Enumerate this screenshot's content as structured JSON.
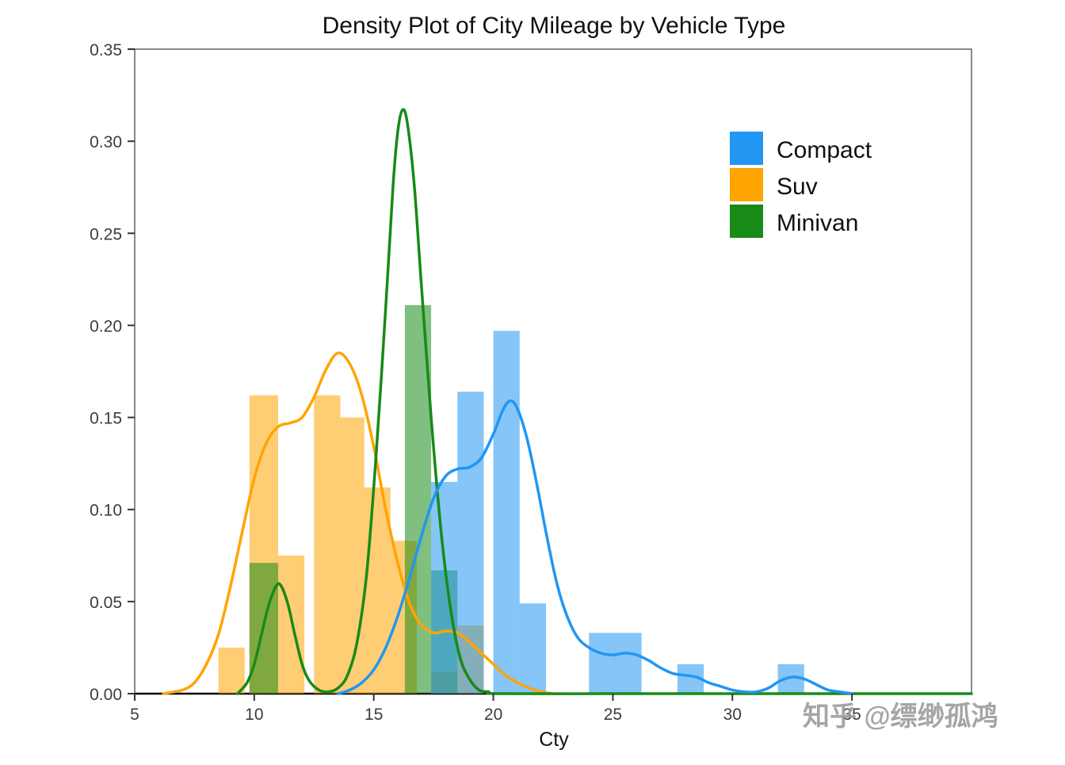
{
  "chart_data": {
    "type": "line",
    "subtype": "density-curves-with-histogram",
    "title": "Density Plot of City Mileage by Vehicle Type",
    "xlabel": "Cty",
    "ylabel": "",
    "xlim": [
      5,
      40
    ],
    "ylim": [
      0,
      0.35
    ],
    "grid": false,
    "x_ticks": [
      5,
      10,
      15,
      20,
      25,
      30,
      35
    ],
    "y_ticks": [
      "0.00",
      "0.05",
      "0.10",
      "0.15",
      "0.20",
      "0.25",
      "0.30",
      "0.35"
    ],
    "legend": {
      "position": "top-right",
      "items": [
        {
          "label": "Compact",
          "color": "#2196F3"
        },
        {
          "label": "Suv",
          "color": "#FFA400"
        },
        {
          "label": "Minivan",
          "color": "#188A18"
        }
      ]
    },
    "series": [
      {
        "name": "Suv",
        "color": "#FFA400",
        "bar_opacity": 0.55,
        "bars": [
          [
            8.5,
            9.6,
            0.025
          ],
          [
            9.8,
            11.0,
            0.162
          ],
          [
            11.0,
            12.1,
            0.075
          ],
          [
            12.5,
            13.6,
            0.162
          ],
          [
            13.6,
            14.6,
            0.15
          ],
          [
            14.6,
            15.7,
            0.112
          ],
          [
            15.7,
            16.8,
            0.083
          ],
          [
            17.4,
            18.5,
            0.012
          ],
          [
            18.5,
            19.6,
            0.037
          ]
        ],
        "density": [
          [
            6.2,
            0
          ],
          [
            7,
            0.002
          ],
          [
            7.5,
            0.006
          ],
          [
            8,
            0.016
          ],
          [
            8.5,
            0.032
          ],
          [
            9,
            0.058
          ],
          [
            9.5,
            0.088
          ],
          [
            10,
            0.117
          ],
          [
            10.5,
            0.136
          ],
          [
            11,
            0.145
          ],
          [
            11.5,
            0.147
          ],
          [
            12,
            0.15
          ],
          [
            12.5,
            0.161
          ],
          [
            13,
            0.176
          ],
          [
            13.5,
            0.185
          ],
          [
            14,
            0.179
          ],
          [
            14.5,
            0.162
          ],
          [
            15,
            0.134
          ],
          [
            15.5,
            0.1
          ],
          [
            16,
            0.071
          ],
          [
            16.5,
            0.049
          ],
          [
            17,
            0.037
          ],
          [
            17.5,
            0.033
          ],
          [
            18,
            0.034
          ],
          [
            18.5,
            0.033
          ],
          [
            19,
            0.028
          ],
          [
            19.5,
            0.022
          ],
          [
            20,
            0.016
          ],
          [
            20.5,
            0.01
          ],
          [
            21,
            0.006
          ],
          [
            21.5,
            0.003
          ],
          [
            22,
            0.001
          ],
          [
            22.5,
            0
          ]
        ]
      },
      {
        "name": "Minivan",
        "color": "#188A18",
        "bar_opacity": 0.55,
        "bars": [
          [
            9.8,
            11.0,
            0.071
          ],
          [
            16.3,
            17.4,
            0.211
          ],
          [
            17.4,
            18.5,
            0.067
          ]
        ],
        "density": [
          [
            9.3,
            0
          ],
          [
            9.7,
            0.006
          ],
          [
            10,
            0.016
          ],
          [
            10.3,
            0.032
          ],
          [
            10.6,
            0.048
          ],
          [
            10.9,
            0.058
          ],
          [
            11.1,
            0.059
          ],
          [
            11.4,
            0.049
          ],
          [
            11.7,
            0.032
          ],
          [
            12,
            0.016
          ],
          [
            12.3,
            0.007
          ],
          [
            12.7,
            0.002
          ],
          [
            13.1,
            0.001
          ],
          [
            13.5,
            0.003
          ],
          [
            13.9,
            0.01
          ],
          [
            14.3,
            0.028
          ],
          [
            14.7,
            0.065
          ],
          [
            15.1,
            0.13
          ],
          [
            15.5,
            0.21
          ],
          [
            15.8,
            0.275
          ],
          [
            16.0,
            0.305
          ],
          [
            16.2,
            0.317
          ],
          [
            16.4,
            0.31
          ],
          [
            16.7,
            0.275
          ],
          [
            17.0,
            0.22
          ],
          [
            17.4,
            0.15
          ],
          [
            17.8,
            0.09
          ],
          [
            18.2,
            0.047
          ],
          [
            18.6,
            0.02
          ],
          [
            19.0,
            0.008
          ],
          [
            19.4,
            0.002
          ],
          [
            19.8,
            0.001
          ],
          [
            20.2,
            0
          ],
          [
            25,
            0
          ],
          [
            30,
            0
          ],
          [
            35,
            0
          ],
          [
            40,
            0
          ]
        ]
      },
      {
        "name": "Compact",
        "color": "#2196F3",
        "bar_opacity": 0.55,
        "bars": [
          [
            17.4,
            18.5,
            0.115
          ],
          [
            18.5,
            19.6,
            0.164
          ],
          [
            20.0,
            21.1,
            0.197
          ],
          [
            21.1,
            22.2,
            0.049
          ],
          [
            24.0,
            25.1,
            0.033
          ],
          [
            25.1,
            26.2,
            0.033
          ],
          [
            27.7,
            28.8,
            0.016
          ],
          [
            31.9,
            33.0,
            0.016
          ]
        ],
        "density": [
          [
            13.5,
            0
          ],
          [
            14,
            0.002
          ],
          [
            14.5,
            0.006
          ],
          [
            15,
            0.013
          ],
          [
            15.5,
            0.025
          ],
          [
            16,
            0.042
          ],
          [
            16.5,
            0.063
          ],
          [
            17,
            0.086
          ],
          [
            17.5,
            0.106
          ],
          [
            18,
            0.118
          ],
          [
            18.5,
            0.122
          ],
          [
            19,
            0.123
          ],
          [
            19.5,
            0.128
          ],
          [
            20,
            0.141
          ],
          [
            20.4,
            0.154
          ],
          [
            20.7,
            0.159
          ],
          [
            21,
            0.155
          ],
          [
            21.4,
            0.139
          ],
          [
            21.8,
            0.115
          ],
          [
            22.2,
            0.088
          ],
          [
            22.6,
            0.063
          ],
          [
            23,
            0.045
          ],
          [
            23.5,
            0.031
          ],
          [
            24,
            0.025
          ],
          [
            24.5,
            0.022
          ],
          [
            25,
            0.021
          ],
          [
            25.5,
            0.022
          ],
          [
            26,
            0.021
          ],
          [
            26.5,
            0.018
          ],
          [
            27,
            0.014
          ],
          [
            27.5,
            0.011
          ],
          [
            28,
            0.01
          ],
          [
            28.5,
            0.009
          ],
          [
            29,
            0.006
          ],
          [
            29.5,
            0.004
          ],
          [
            30,
            0.002
          ],
          [
            30.5,
            0.001
          ],
          [
            31,
            0.001
          ],
          [
            31.5,
            0.003
          ],
          [
            32,
            0.007
          ],
          [
            32.5,
            0.009
          ],
          [
            33,
            0.008
          ],
          [
            33.5,
            0.005
          ],
          [
            34,
            0.002
          ],
          [
            34.5,
            0.001
          ],
          [
            35,
            0
          ]
        ]
      }
    ],
    "watermark": "知乎 @缥缈孤鸿"
  }
}
